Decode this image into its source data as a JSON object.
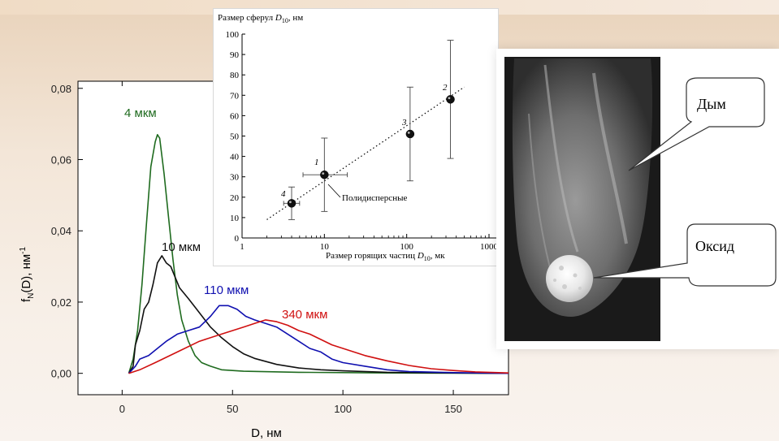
{
  "main_chart": {
    "chart_data": {
      "type": "line",
      "title": "",
      "xlabel": "D, нм",
      "ylabel": "f_N(D), нм^-1",
      "xlim": [
        -20,
        175
      ],
      "ylim": [
        -0.006,
        0.082
      ],
      "x_ticks": [
        0,
        50,
        100,
        150
      ],
      "x_tick_labels": [
        "0",
        "50",
        "100",
        "150"
      ],
      "y_ticks": [
        0.0,
        0.02,
        0.04,
        0.06,
        0.08
      ],
      "y_tick_labels": [
        "0,00",
        "0,02",
        "0,04",
        "0,06",
        "0,08"
      ],
      "grid": false,
      "series": [
        {
          "name": "4 мкм",
          "color": "#1f6b1f",
          "points": [
            [
              3,
              0
            ],
            [
              5,
              0.004
            ],
            [
              7,
              0.012
            ],
            [
              9,
              0.025
            ],
            [
              11,
              0.042
            ],
            [
              13,
              0.058
            ],
            [
              15,
              0.065
            ],
            [
              16,
              0.067
            ],
            [
              17,
              0.066
            ],
            [
              19,
              0.056
            ],
            [
              21,
              0.044
            ],
            [
              23,
              0.032
            ],
            [
              25,
              0.022
            ],
            [
              27,
              0.015
            ],
            [
              30,
              0.009
            ],
            [
              33,
              0.005
            ],
            [
              36,
              0.003
            ],
            [
              40,
              0.002
            ],
            [
              45,
              0.001
            ],
            [
              55,
              0.0006
            ],
            [
              80,
              0.0003
            ],
            [
              120,
              0.0001
            ],
            [
              175,
              0
            ]
          ]
        },
        {
          "name": "10 мкм",
          "color": "#111111",
          "points": [
            [
              3,
              0
            ],
            [
              5,
              0.002
            ],
            [
              6,
              0.008
            ],
            [
              8,
              0.012
            ],
            [
              10,
              0.018
            ],
            [
              12,
              0.02
            ],
            [
              14,
              0.025
            ],
            [
              16,
              0.031
            ],
            [
              18,
              0.033
            ],
            [
              20,
              0.031
            ],
            [
              22,
              0.03
            ],
            [
              24,
              0.027
            ],
            [
              26,
              0.024
            ],
            [
              30,
              0.021
            ],
            [
              35,
              0.017
            ],
            [
              40,
              0.013
            ],
            [
              45,
              0.01
            ],
            [
              50,
              0.0075
            ],
            [
              55,
              0.0055
            ],
            [
              60,
              0.0042
            ],
            [
              70,
              0.0025
            ],
            [
              80,
              0.0015
            ],
            [
              90,
              0.001
            ],
            [
              100,
              0.0007
            ],
            [
              120,
              0.0003
            ],
            [
              150,
              0.0001
            ],
            [
              175,
              0
            ]
          ]
        },
        {
          "name": "110 мкм",
          "color": "#1010b0",
          "points": [
            [
              3,
              0
            ],
            [
              6,
              0.002
            ],
            [
              8,
              0.004
            ],
            [
              12,
              0.005
            ],
            [
              16,
              0.007
            ],
            [
              20,
              0.009
            ],
            [
              25,
              0.011
            ],
            [
              30,
              0.012
            ],
            [
              35,
              0.013
            ],
            [
              40,
              0.016
            ],
            [
              44,
              0.019
            ],
            [
              48,
              0.019
            ],
            [
              52,
              0.018
            ],
            [
              56,
              0.016
            ],
            [
              60,
              0.015
            ],
            [
              65,
              0.014
            ],
            [
              70,
              0.013
            ],
            [
              75,
              0.011
            ],
            [
              80,
              0.009
            ],
            [
              85,
              0.007
            ],
            [
              90,
              0.006
            ],
            [
              95,
              0.004
            ],
            [
              100,
              0.003
            ],
            [
              110,
              0.002
            ],
            [
              120,
              0.001
            ],
            [
              130,
              0.0005
            ],
            [
              150,
              0.0002
            ],
            [
              175,
              0
            ]
          ]
        },
        {
          "name": "340 мкм",
          "color": "#d01010",
          "points": [
            [
              3,
              0
            ],
            [
              8,
              0.001
            ],
            [
              15,
              0.003
            ],
            [
              25,
              0.006
            ],
            [
              35,
              0.009
            ],
            [
              45,
              0.011
            ],
            [
              55,
              0.013
            ],
            [
              60,
              0.014
            ],
            [
              65,
              0.015
            ],
            [
              70,
              0.0145
            ],
            [
              75,
              0.0135
            ],
            [
              80,
              0.012
            ],
            [
              85,
              0.011
            ],
            [
              90,
              0.0095
            ],
            [
              95,
              0.008
            ],
            [
              100,
              0.007
            ],
            [
              110,
              0.005
            ],
            [
              120,
              0.0035
            ],
            [
              130,
              0.0022
            ],
            [
              140,
              0.0013
            ],
            [
              150,
              0.0008
            ],
            [
              160,
              0.0004
            ],
            [
              175,
              0.0001
            ]
          ]
        }
      ]
    },
    "labels": {
      "s4": "4 мкм",
      "s10": "10 мкм",
      "s110": "110 мкм",
      "s340": "340 мкм"
    },
    "axis": {
      "xlabel": "D, нм",
      "ylabel_main": "f",
      "ylabel_sub": "N",
      "ylabel_rest": "(D), нм",
      "ylabel_sup": "-1"
    }
  },
  "inset_chart": {
    "chart_data": {
      "type": "scatter",
      "title": "Размер сферул D10, нм",
      "xlabel": "Размер горящих частиц D10, мкм",
      "ylabel": "Размер сферул D10, нм",
      "x_scale": "log",
      "xlim": [
        1,
        1000
      ],
      "ylim": [
        0,
        100
      ],
      "x_ticks": [
        1,
        10,
        100,
        1000
      ],
      "x_tick_labels": [
        "1",
        "10",
        "100",
        "1000"
      ],
      "y_ticks": [
        0,
        10,
        20,
        30,
        40,
        50,
        60,
        70,
        80,
        90,
        100
      ],
      "y_tick_labels": [
        "0",
        "10",
        "20",
        "30",
        "40",
        "50",
        "60",
        "70",
        "80",
        "90",
        "100"
      ],
      "grid": false,
      "points": [
        {
          "label": "4",
          "x": 4,
          "y": 17,
          "y_err": [
            9,
            25
          ],
          "x_err": [
            3.2,
            5
          ]
        },
        {
          "label": "1",
          "x": 10,
          "y": 31,
          "y_err": [
            13,
            49
          ],
          "x_err": [
            5.5,
            19
          ]
        },
        {
          "label": "3",
          "x": 110,
          "y": 51,
          "y_err": [
            28,
            74
          ],
          "x_err": null
        },
        {
          "label": "2",
          "x": 340,
          "y": 68,
          "y_err": [
            39,
            97
          ],
          "x_err": null
        }
      ],
      "trend_line": {
        "style": "dotted",
        "x": [
          2,
          500
        ],
        "y": [
          9,
          74
        ]
      },
      "annotation": "Полидисперсные"
    },
    "labels": {
      "title_pre": "Размер сферул ",
      "title_D": "D",
      "title_sub": "10",
      "title_post": ", нм",
      "xlabel_pre": "Размер горящих частиц ",
      "xlabel_D": "D",
      "xlabel_sub": "10",
      "xlabel_post": ", мк",
      "annotation": "Полидисперсные",
      "p4": "4",
      "p1": "1",
      "p3": "3",
      "p2": "2"
    }
  },
  "photo": {
    "callout_smoke": "Дым",
    "callout_oxide": "Оксид"
  }
}
